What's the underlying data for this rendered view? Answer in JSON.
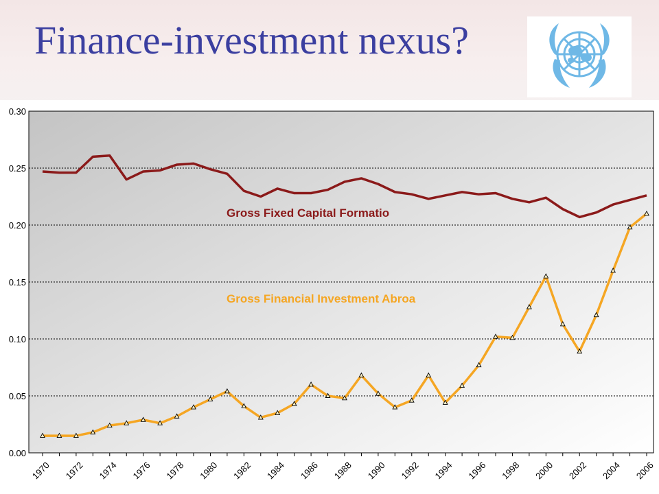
{
  "slide": {
    "title": "Finance-investment nexus?"
  },
  "logo": {
    "icon": "un-emblem-icon",
    "color": "#6fb8e6"
  },
  "chart_data": {
    "type": "line",
    "title": "",
    "xlabel": "",
    "ylabel": "",
    "x": [
      1970,
      1971,
      1972,
      1973,
      1974,
      1975,
      1976,
      1977,
      1978,
      1979,
      1980,
      1981,
      1982,
      1983,
      1984,
      1985,
      1986,
      1987,
      1988,
      1989,
      1990,
      1991,
      1992,
      1993,
      1994,
      1995,
      1996,
      1997,
      1998,
      1999,
      2000,
      2001,
      2002,
      2003,
      2004,
      2005,
      2006
    ],
    "xticks": [
      1970,
      1972,
      1974,
      1976,
      1978,
      1980,
      1982,
      1984,
      1986,
      1988,
      1990,
      1992,
      1994,
      1996,
      1998,
      2000,
      2002,
      2004,
      2006
    ],
    "ylim": [
      0,
      0.3
    ],
    "yticks": [
      "0.00",
      "0.05",
      "0.10",
      "0.15",
      "0.20",
      "0.25",
      "0.30"
    ],
    "grid": "horizontal",
    "series": [
      {
        "name": "Gross Fixed Capital Formatio",
        "color": "#8b1a1a",
        "marker": "none",
        "values": [
          0.247,
          0.246,
          0.246,
          0.26,
          0.261,
          0.24,
          0.247,
          0.248,
          0.253,
          0.254,
          0.249,
          0.245,
          0.23,
          0.225,
          0.232,
          0.228,
          0.228,
          0.231,
          0.238,
          0.241,
          0.236,
          0.229,
          0.227,
          0.223,
          0.226,
          0.229,
          0.227,
          0.228,
          0.223,
          0.22,
          0.224,
          0.214,
          0.207,
          0.211,
          0.218,
          0.222,
          0.226
        ]
      },
      {
        "name": "Gross Financial Investment Abroa",
        "color": "#f5a623",
        "marker": "triangle",
        "values": [
          0.015,
          0.015,
          0.015,
          0.018,
          0.024,
          0.026,
          0.029,
          0.026,
          0.032,
          0.04,
          0.047,
          0.054,
          0.041,
          0.031,
          0.035,
          0.043,
          0.06,
          0.05,
          0.048,
          0.068,
          0.052,
          0.04,
          0.046,
          0.068,
          0.044,
          0.059,
          0.077,
          0.102,
          0.101,
          0.128,
          0.155,
          0.113,
          0.089,
          0.121,
          0.16,
          0.198,
          0.21
        ]
      }
    ],
    "annotations": [
      {
        "text": "Gross Fixed Capital Formatio",
        "series": 0,
        "color": "#8b1a1a"
      },
      {
        "text": "Gross Financial Investment Abroa",
        "series": 1,
        "color": "#f5a623"
      }
    ]
  }
}
